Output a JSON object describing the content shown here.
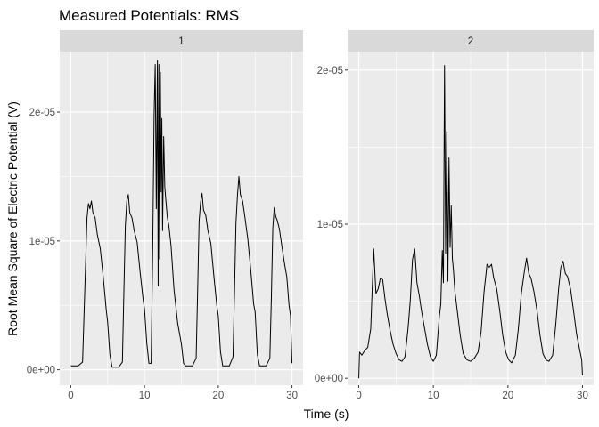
{
  "chart_data": {
    "type": "line",
    "title": "Measured Potentials: RMS",
    "xlabel": "Time (s)",
    "ylabel": "Root Mean Square of Electric Potential (V)",
    "facet_scales": "free_y",
    "grid": true,
    "legend": "none",
    "colors": {
      "line": "#000000",
      "panel_background": "#ebebeb",
      "strip_background": "#d9d9d9",
      "grid": "#ffffff"
    },
    "panels": [
      {
        "strip": "1",
        "xlim": [
          -1.5,
          31.5
        ],
        "ylim": [
          -1.2e-06,
          2.47e-05
        ],
        "x_ticks": [
          0,
          10,
          20,
          30
        ],
        "x_tick_labels": [
          "0",
          "10",
          "20",
          "30"
        ],
        "y_ticks": [
          0,
          1e-05,
          2e-05
        ],
        "y_tick_labels": [
          "0e+00",
          "1e-05",
          "2e-05"
        ],
        "series": [
          {
            "x": [
              0,
              0.3,
              1.0,
              1.6,
              2.0,
              2.2,
              2.4,
              2.6,
              2.8,
              3.0,
              3.3,
              3.6,
              4.0,
              4.4,
              4.8,
              5.0,
              5.3,
              5.6,
              6.0,
              6.5,
              7.0,
              7.2,
              7.4,
              7.6,
              7.8,
              8.0,
              8.3,
              8.6,
              9.0,
              9.4,
              9.8,
              10.0,
              10.3,
              10.6,
              10.9,
              11.1,
              11.3,
              11.45,
              11.6,
              11.75,
              11.85,
              11.95,
              12.05,
              12.15,
              12.25,
              12.35,
              12.45,
              12.6,
              12.75,
              12.9,
              13.1,
              13.3,
              13.6,
              14.0,
              14.5,
              15.0,
              15.3,
              15.6,
              16.0,
              16.5,
              17.0,
              17.2,
              17.4,
              17.6,
              17.8,
              18.0,
              18.3,
              18.6,
              19.0,
              19.4,
              19.8,
              20.0,
              20.3,
              20.6,
              21.0,
              21.5,
              22.0,
              22.2,
              22.4,
              22.6,
              22.8,
              23.0,
              23.3,
              23.6,
              24.0,
              24.4,
              24.8,
              25.0,
              25.3,
              25.6,
              26.0,
              26.5,
              27.0,
              27.2,
              27.4,
              27.6,
              27.8,
              28.0,
              28.3,
              28.6,
              29.0,
              29.3,
              29.6,
              29.8,
              30.0
            ],
            "y": [
              3e-07,
              3e-07,
              3e-07,
              6e-07,
              8e-06,
              1.18e-05,
              1.29e-05,
              1.25e-05,
              1.31e-05,
              1.22e-05,
              1.18e-05,
              1.05e-05,
              9.4e-06,
              7.2e-06,
              4.7e-06,
              3.7e-06,
              1.2e-06,
              2e-07,
              2e-07,
              2e-07,
              6e-07,
              6e-06,
              1.12e-05,
              1.31e-05,
              1.36e-05,
              1.22e-05,
              1.18e-05,
              1.08e-05,
              9.9e-06,
              7.6e-06,
              5.5e-06,
              4.7e-06,
              2.1e-06,
              5e-07,
              5e-07,
              8.8e-06,
              1.98e-05,
              2.37e-05,
              1.25e-05,
              2.4e-05,
              6.5e-06,
              2.37e-05,
              8.6e-06,
              2.31e-05,
              1.38e-05,
              1.95e-05,
              1.08e-05,
              1.81e-05,
              1.42e-05,
              1.31e-05,
              1.18e-05,
              1.12e-05,
              9.6e-06,
              6.2e-06,
              3.6e-06,
              2e-06,
              5e-07,
              3e-07,
              3e-07,
              3e-07,
              9e-07,
              6e-06,
              1.15e-05,
              1.3e-05,
              1.37e-05,
              1.24e-05,
              1.2e-05,
              1.08e-05,
              9.8e-06,
              7.3e-06,
              5e-06,
              4.2e-06,
              1.4e-06,
              3e-07,
              3e-07,
              3e-07,
              1e-06,
              6e-06,
              1.14e-05,
              1.35e-05,
              1.5e-05,
              1.36e-05,
              1.31e-05,
              1.19e-05,
              1.02e-05,
              7.8e-06,
              5.1e-06,
              4.5e-06,
              1.2e-06,
              3e-07,
              3e-07,
              3e-07,
              9e-07,
              5.5e-06,
              1.1e-05,
              1.26e-05,
              1.19e-05,
              1.16e-05,
              1.09e-05,
              9.7e-06,
              8.2e-06,
              7.2e-06,
              5e-06,
              4.2e-06,
              5e-07
            ]
          }
        ]
      },
      {
        "strip": "2",
        "xlim": [
          -1.5,
          31.5
        ],
        "ylim": [
          -4.5e-07,
          2.12e-05
        ],
        "x_ticks": [
          0,
          10,
          20,
          30
        ],
        "x_tick_labels": [
          "0",
          "10",
          "20",
          "30"
        ],
        "y_ticks": [
          0,
          1e-05,
          2e-05
        ],
        "y_tick_labels": [
          "0e+00",
          "1e-05",
          "2e-05"
        ],
        "series": [
          {
            "x": [
              0,
              0.1,
              0.4,
              0.8,
              1.2,
              1.6,
              2.0,
              2.3,
              2.6,
              2.9,
              3.2,
              3.5,
              3.8,
              4.2,
              4.6,
              5.0,
              5.4,
              5.8,
              6.2,
              6.6,
              6.9,
              7.2,
              7.5,
              7.8,
              8.1,
              8.4,
              8.8,
              9.2,
              9.6,
              10.0,
              10.4,
              10.8,
              11.0,
              11.2,
              11.35,
              11.5,
              11.65,
              11.8,
              11.95,
              12.1,
              12.25,
              12.4,
              12.55,
              12.7,
              12.9,
              13.2,
              13.6,
              14.0,
              14.5,
              15.0,
              15.5,
              16.0,
              16.4,
              16.8,
              17.2,
              17.5,
              17.8,
              18.1,
              18.5,
              18.9,
              19.3,
              19.7,
              20.1,
              20.5,
              21.0,
              21.4,
              21.8,
              22.2,
              22.5,
              22.8,
              23.1,
              23.5,
              23.9,
              24.3,
              24.7,
              25.1,
              25.5,
              26.0,
              26.4,
              26.8,
              27.1,
              27.4,
              27.7,
              28.0,
              28.4,
              28.8,
              29.2,
              29.6,
              29.9,
              30.0
            ],
            "y": [
              0,
              1.7e-06,
              1.5e-06,
              1.8e-06,
              2e-06,
              3.2e-06,
              8.4e-06,
              5.5e-06,
              5.8e-06,
              6.5e-06,
              6.4e-06,
              5.2e-06,
              4.2e-06,
              3.1e-06,
              2.2e-06,
              1.6e-06,
              1.2e-06,
              1.1e-06,
              1.4e-06,
              3.2e-06,
              5e-06,
              7.7e-06,
              8.4e-06,
              6.2e-06,
              5.4e-06,
              4.4e-06,
              3.3e-06,
              2.2e-06,
              1.4e-06,
              1.1e-06,
              1.5e-06,
              4e-06,
              4.8e-06,
              8.3e-06,
              6.2e-06,
              2.03e-05,
              8.1e-06,
              1.6e-05,
              6.3e-06,
              1.43e-05,
              8.5e-06,
              1.12e-05,
              7.8e-06,
              7e-06,
              5.6e-06,
              4.4e-06,
              2.8e-06,
              1.6e-06,
              1.2e-06,
              1.1e-06,
              1.3e-06,
              1.7e-06,
              3e-06,
              5.6e-06,
              7.4e-06,
              7.2e-06,
              7.4e-06,
              6.5e-06,
              5.8e-06,
              4.4e-06,
              2.8e-06,
              1.7e-06,
              1.2e-06,
              1e-06,
              1.5e-06,
              3.2e-06,
              5.5e-06,
              6.9e-06,
              7.8e-06,
              6.8e-06,
              6.5e-06,
              5.6e-06,
              4.4e-06,
              2.8e-06,
              1.6e-06,
              1.2e-06,
              1.1e-06,
              1.5e-06,
              3.4e-06,
              5.8e-06,
              7.2e-06,
              7.6e-06,
              6.8e-06,
              6.6e-06,
              5.8e-06,
              4.4e-06,
              2.9e-06,
              1.9e-06,
              1.2e-06,
              2e-07
            ]
          }
        ]
      }
    ]
  }
}
